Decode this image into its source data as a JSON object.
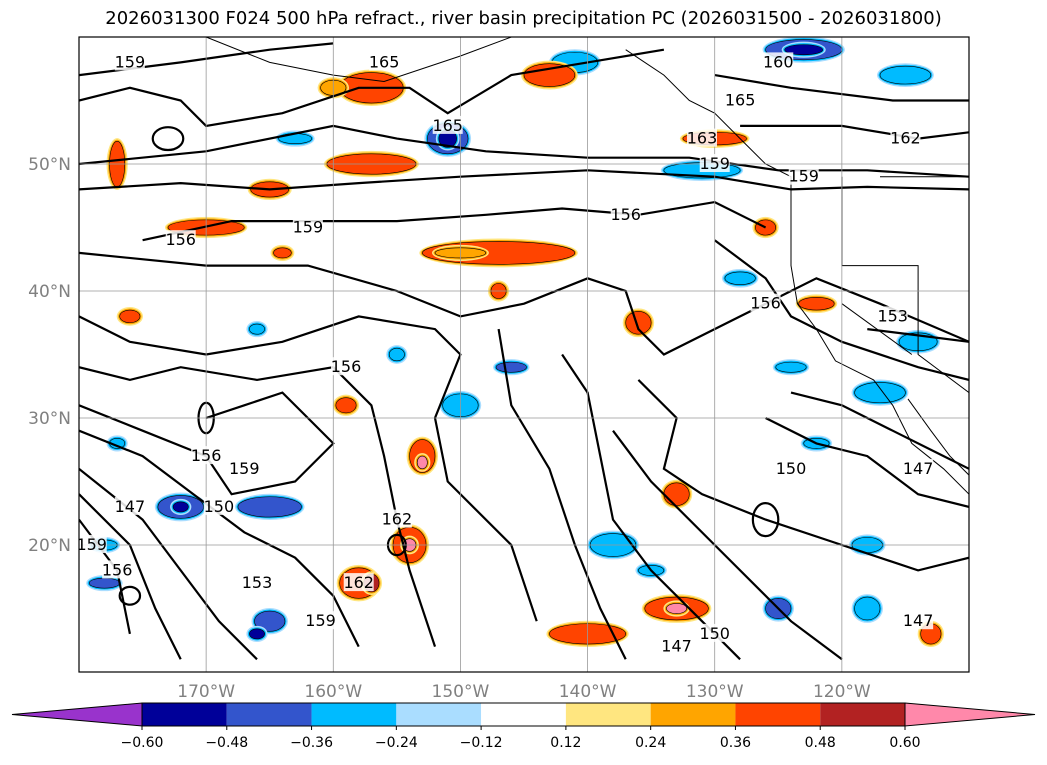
{
  "title": "2026031300 F024 500 hPa refract., river basin precipitation PC (2026031500 - 2026031800)",
  "map": {
    "lon_range": [
      -180,
      -110
    ],
    "lat_range": [
      10,
      60
    ],
    "lat_ticks": [
      {
        "value": 50,
        "label": "50°N"
      },
      {
        "value": 40,
        "label": "40°N"
      },
      {
        "value": 30,
        "label": "30°N"
      },
      {
        "value": 20,
        "label": "20°N"
      }
    ],
    "lon_ticks": [
      {
        "value": -170,
        "label": "170°W"
      },
      {
        "value": -160,
        "label": "160°W"
      },
      {
        "value": -150,
        "label": "150°W"
      },
      {
        "value": -140,
        "label": "140°W"
      },
      {
        "value": -130,
        "label": "130°W"
      },
      {
        "value": -120,
        "label": "120°W"
      }
    ],
    "grid": true,
    "contour_labels": [
      {
        "text": "159",
        "lon": -176,
        "lat": 58
      },
      {
        "text": "165",
        "lon": -156,
        "lat": 58
      },
      {
        "text": "165",
        "lon": -151,
        "lat": 53
      },
      {
        "text": "160",
        "lon": -125,
        "lat": 58
      },
      {
        "text": "165",
        "lon": -128,
        "lat": 55
      },
      {
        "text": "162",
        "lon": -115,
        "lat": 52
      },
      {
        "text": "163",
        "lon": -131,
        "lat": 52
      },
      {
        "text": "159",
        "lon": -130,
        "lat": 50
      },
      {
        "text": "159",
        "lon": -123,
        "lat": 49
      },
      {
        "text": "156",
        "lon": -137,
        "lat": 46
      },
      {
        "text": "159",
        "lon": -162,
        "lat": 45
      },
      {
        "text": "156",
        "lon": -172,
        "lat": 44
      },
      {
        "text": "156",
        "lon": -126,
        "lat": 39
      },
      {
        "text": "153",
        "lon": -116,
        "lat": 38
      },
      {
        "text": "156",
        "lon": -159,
        "lat": 34
      },
      {
        "text": "156",
        "lon": -170,
        "lat": 27
      },
      {
        "text": "159",
        "lon": -167,
        "lat": 26
      },
      {
        "text": "150",
        "lon": -124,
        "lat": 26
      },
      {
        "text": "147",
        "lon": -114,
        "lat": 26
      },
      {
        "text": "150",
        "lon": -169,
        "lat": 23
      },
      {
        "text": "147",
        "lon": -176,
        "lat": 23
      },
      {
        "text": "162",
        "lon": -155,
        "lat": 22
      },
      {
        "text": "159",
        "lon": -179,
        "lat": 20
      },
      {
        "text": "156",
        "lon": -177,
        "lat": 18
      },
      {
        "text": "153",
        "lon": -166,
        "lat": 17
      },
      {
        "text": "162",
        "lon": -158,
        "lat": 17
      },
      {
        "text": "159",
        "lon": -161,
        "lat": 14
      },
      {
        "text": "147",
        "lon": -133,
        "lat": 12
      },
      {
        "text": "150",
        "lon": -130,
        "lat": 13
      },
      {
        "text": "147",
        "lon": -114,
        "lat": 14
      }
    ]
  },
  "colorbar": {
    "colors": [
      "#9933cc",
      "#000099",
      "#3355cc",
      "#00bbff",
      "#aaddff",
      "#ffffff",
      "#ffe680",
      "#ffa500",
      "#ff4400",
      "#b22222",
      "#ff88aa"
    ],
    "tick_labels": [
      "−0.60",
      "−0.48",
      "−0.36",
      "−0.24",
      "−0.12",
      "0.12",
      "0.24",
      "0.36",
      "0.48",
      "0.60"
    ]
  }
}
